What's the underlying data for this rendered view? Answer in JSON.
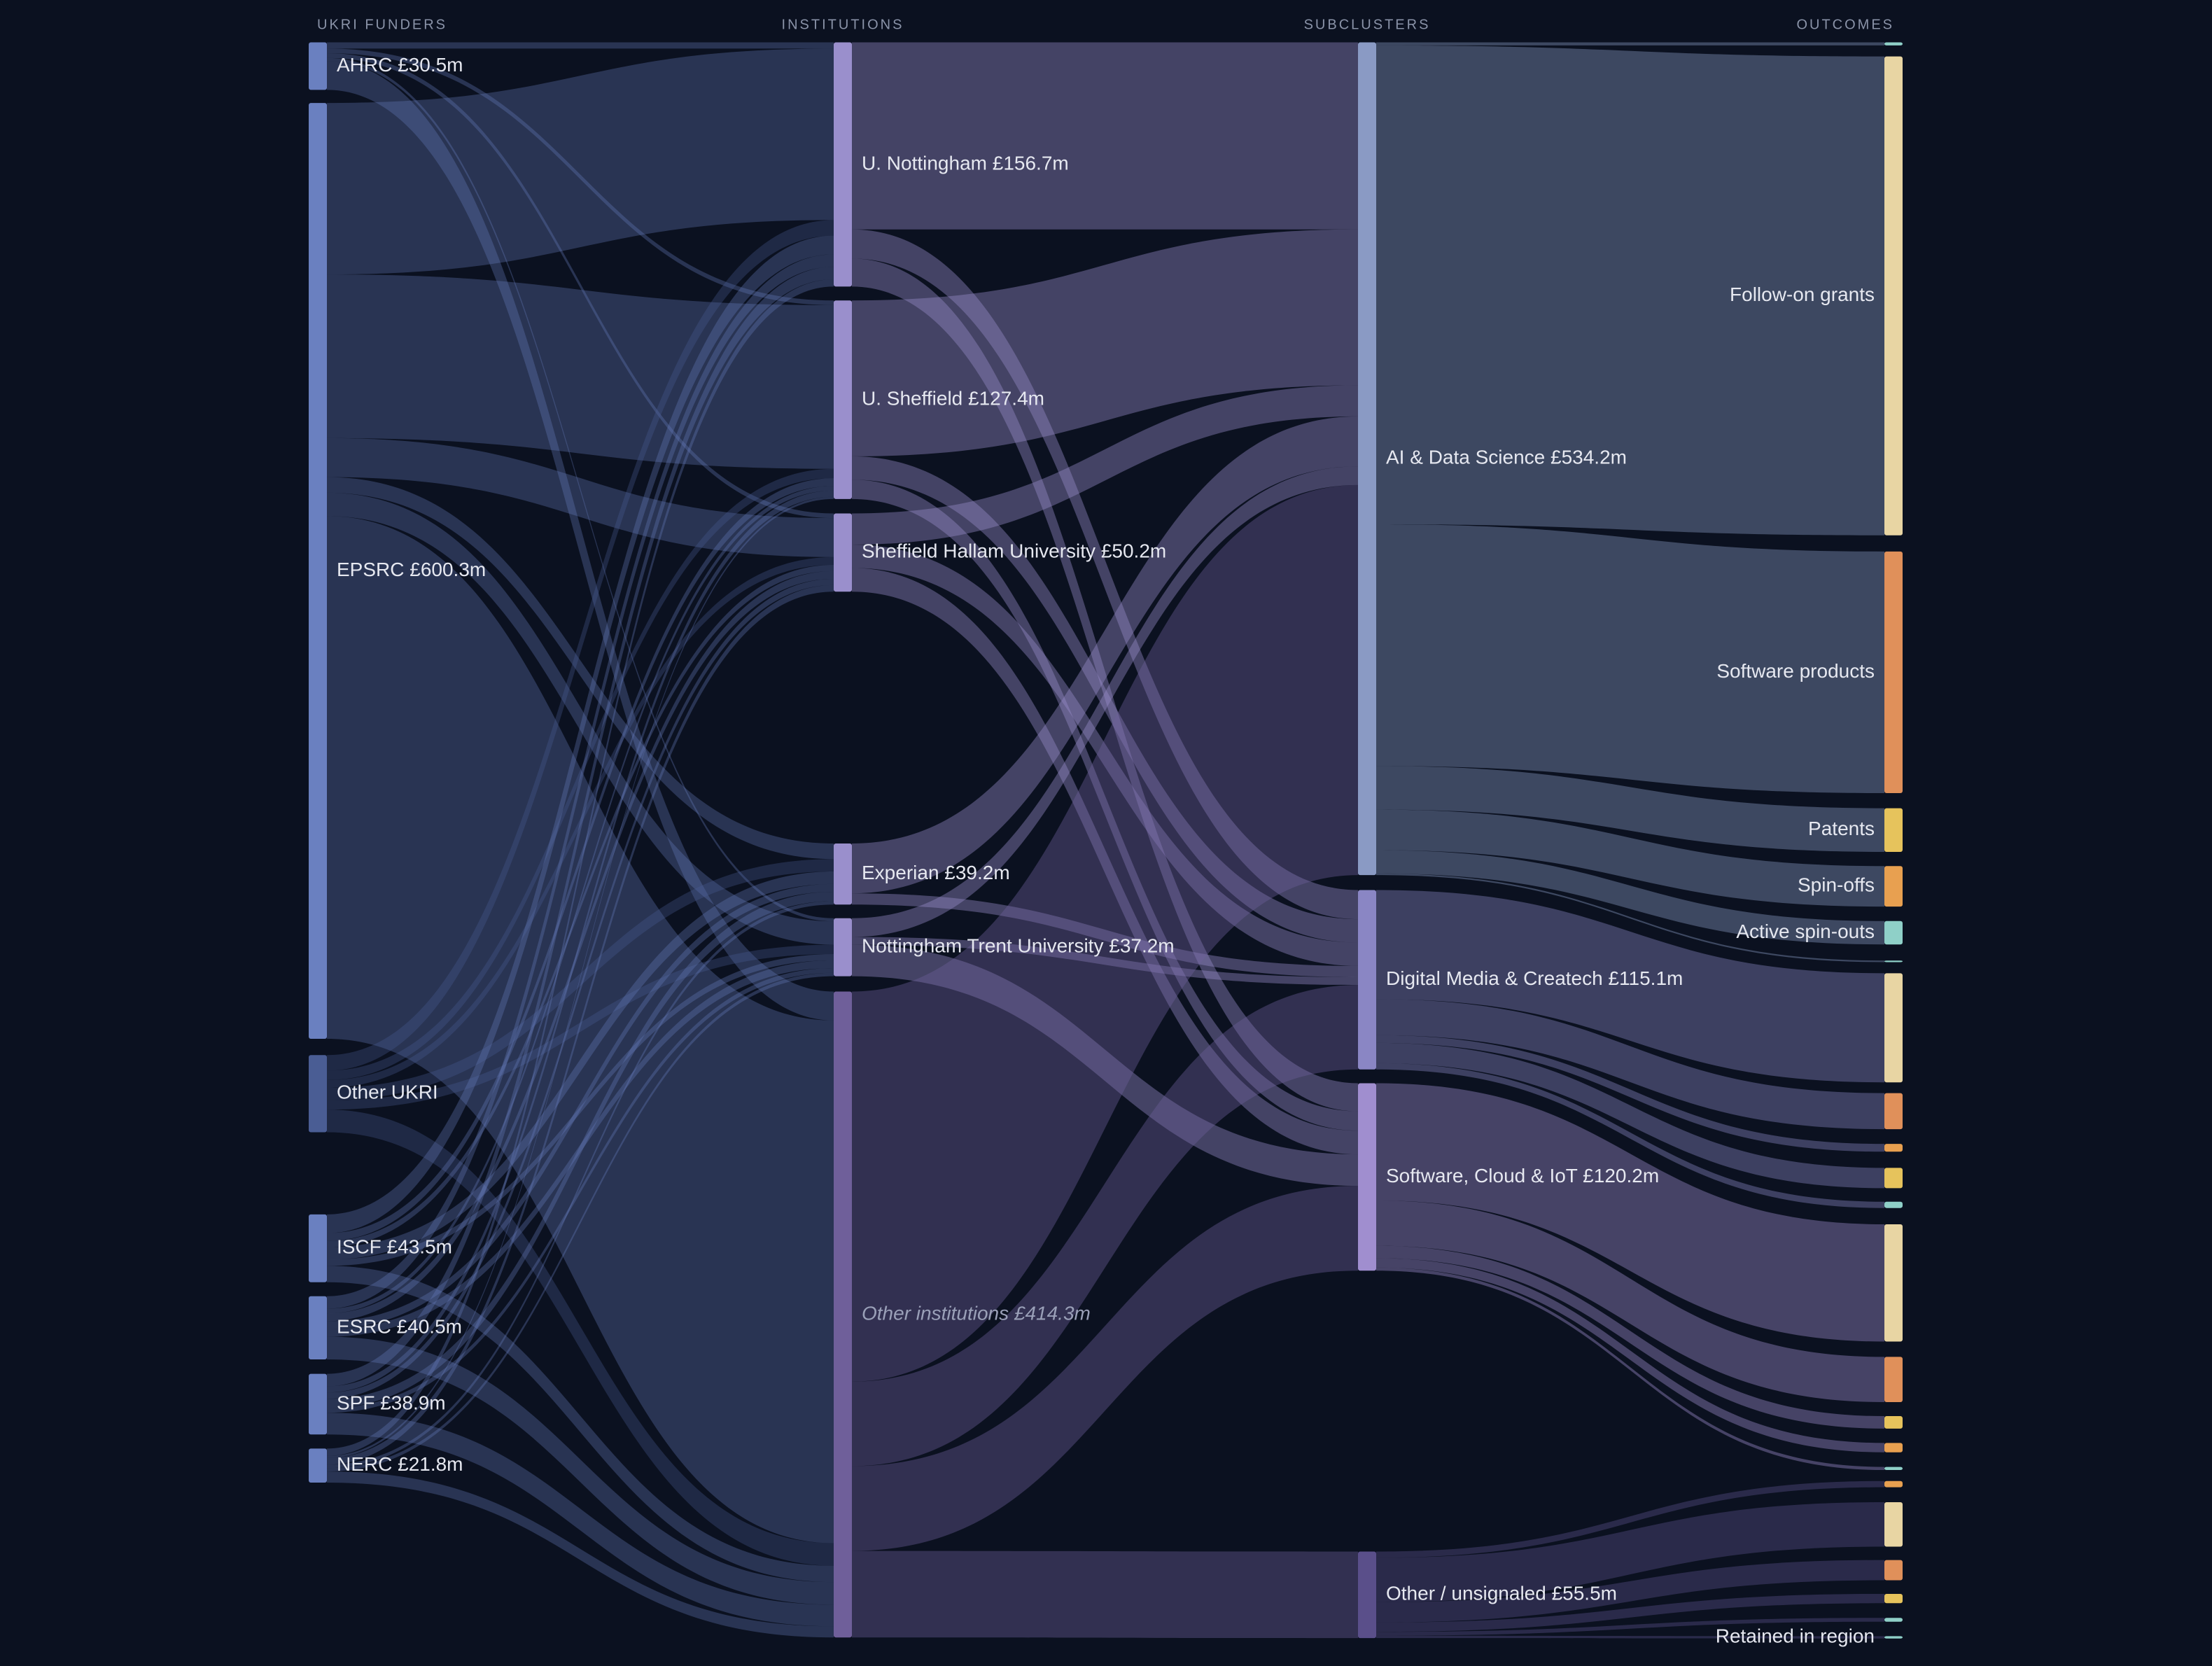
{
  "columns": [
    {
      "title": "UKRI FUNDERS",
      "nodes": [
        {
          "label": "AHRC £30.5m",
          "value": 30.5,
          "color": "#6a80c0"
        },
        {
          "label": "EPSRC £600.3m",
          "value": 600.3,
          "color": "#6a80c0"
        },
        {
          "label": "Other UKRI",
          "value": 49.5,
          "color": "#4a5d94"
        },
        {
          "label": "ISCF £43.5m",
          "value": 43.5,
          "color": "#6a80c0"
        },
        {
          "label": "ESRC £40.5m",
          "value": 40.5,
          "color": "#6a80c0"
        },
        {
          "label": "SPF £38.9m",
          "value": 38.9,
          "color": "#6a80c0"
        },
        {
          "label": "NERC £21.8m",
          "value": 21.8,
          "color": "#6a80c0"
        }
      ]
    },
    {
      "title": "INSTITUTIONS",
      "nodes": [
        {
          "label": "U. Nottingham £156.7m",
          "value": 156.7,
          "color": "#9a8fcc"
        },
        {
          "label": "U. Sheffield £127.4m",
          "value": 127.4,
          "color": "#9a8fcc"
        },
        {
          "label": "Sheffield Hallam University £50.2m",
          "value": 50.2,
          "color": "#9a8fcc"
        },
        {
          "label": "Experian £39.2m",
          "value": 39.2,
          "color": "#9a8fcc"
        },
        {
          "label": "Nottingham Trent University £37.2m",
          "value": 37.2,
          "color": "#9a8fcc"
        },
        {
          "label": "Other institutions £414.3m",
          "value": 414.3,
          "color": "#6f5f9a"
        }
      ]
    },
    {
      "title": "SUBCLUSTERS",
      "nodes": [
        {
          "label": "AI & Data Science £534.2m",
          "value": 534.2,
          "color": "#8a9ac4"
        },
        {
          "label": "Digital Media & Createch £115.1m",
          "value": 115.1,
          "color": "#8a86c4"
        },
        {
          "label": "Software, Cloud & IoT £120.2m",
          "value": 120.2,
          "color": "#a08ecf"
        },
        {
          "label": "Other / unsignaled £55.5m",
          "value": 55.5,
          "color": "#5a4f8a"
        }
      ]
    },
    {
      "title": "OUTCOMES",
      "nodes": [
        {
          "label": null,
          "value": 2,
          "color": "#8fd0c8"
        },
        {
          "label": "Follow-on grants",
          "value": 307.2,
          "color": "#e8d5a3"
        },
        {
          "label": "Software products",
          "value": 155,
          "color": "#e0905a"
        },
        {
          "label": "Patents",
          "value": 28,
          "color": "#e6c35c"
        },
        {
          "label": "Spin-offs",
          "value": 26,
          "color": "#e8a050"
        },
        {
          "label": "Active spin-outs",
          "value": 15,
          "color": "#8fd0c8"
        },
        {
          "label": null,
          "value": 1,
          "color": "#8fd0c8"
        },
        {
          "label": null,
          "value": 70,
          "color": "#e8d5a3"
        },
        {
          "label": null,
          "value": 23.1,
          "color": "#e0905a"
        },
        {
          "label": null,
          "value": 5,
          "color": "#e8a050"
        },
        {
          "label": null,
          "value": 13,
          "color": "#e6c35c"
        },
        {
          "label": null,
          "value": 4,
          "color": "#8fd0c8"
        },
        {
          "label": null,
          "value": 75.2,
          "color": "#e8d5a3"
        },
        {
          "label": null,
          "value": 29,
          "color": "#e0905a"
        },
        {
          "label": null,
          "value": 8,
          "color": "#e6c35c"
        },
        {
          "label": null,
          "value": 6,
          "color": "#e8a050"
        },
        {
          "label": null,
          "value": 2,
          "color": "#8fd0c8"
        },
        {
          "label": null,
          "value": 4,
          "color": "#e8a050"
        },
        {
          "label": null,
          "value": 28.5,
          "color": "#e8d5a3"
        },
        {
          "label": null,
          "value": 13,
          "color": "#e0905a"
        },
        {
          "label": null,
          "value": 6,
          "color": "#e6c35c"
        },
        {
          "label": null,
          "value": 2.5,
          "color": "#8fd0c8"
        },
        {
          "label": "Retained in region",
          "value": 1.5,
          "color": "#8fd0c8"
        }
      ]
    }
  ],
  "links": [
    {
      "source": [
        0,
        0
      ],
      "target": [
        1,
        0
      ],
      "value": 4
    },
    {
      "source": [
        0,
        0
      ],
      "target": [
        1,
        1
      ],
      "value": 3
    },
    {
      "source": [
        0,
        0
      ],
      "target": [
        1,
        2
      ],
      "value": 3
    },
    {
      "source": [
        0,
        0
      ],
      "target": [
        1,
        4
      ],
      "value": 2
    },
    {
      "source": [
        0,
        0
      ],
      "target": [
        1,
        5
      ],
      "value": 18.5
    },
    {
      "source": [
        0,
        1
      ],
      "target": [
        1,
        0
      ],
      "value": 110
    },
    {
      "source": [
        0,
        1
      ],
      "target": [
        1,
        1
      ],
      "value": 105
    },
    {
      "source": [
        0,
        1
      ],
      "target": [
        1,
        2
      ],
      "value": 25
    },
    {
      "source": [
        0,
        1
      ],
      "target": [
        1,
        3
      ],
      "value": 10
    },
    {
      "source": [
        0,
        1
      ],
      "target": [
        1,
        4
      ],
      "value": 15
    },
    {
      "source": [
        0,
        1
      ],
      "target": [
        1,
        5
      ],
      "value": 335.3
    },
    {
      "source": [
        0,
        2
      ],
      "target": [
        1,
        0
      ],
      "value": 10
    },
    {
      "source": [
        0,
        2
      ],
      "target": [
        1,
        1
      ],
      "value": 6
    },
    {
      "source": [
        0,
        2
      ],
      "target": [
        1,
        2
      ],
      "value": 5
    },
    {
      "source": [
        0,
        2
      ],
      "target": [
        1,
        3
      ],
      "value": 8
    },
    {
      "source": [
        0,
        2
      ],
      "target": [
        1,
        4
      ],
      "value": 6
    },
    {
      "source": [
        0,
        2
      ],
      "target": [
        1,
        5
      ],
      "value": 14.5
    },
    {
      "source": [
        0,
        3
      ],
      "target": [
        1,
        0
      ],
      "value": 12
    },
    {
      "source": [
        0,
        3
      ],
      "target": [
        1,
        1
      ],
      "value": 5
    },
    {
      "source": [
        0,
        3
      ],
      "target": [
        1,
        2
      ],
      "value": 4
    },
    {
      "source": [
        0,
        3
      ],
      "target": [
        1,
        3
      ],
      "value": 8
    },
    {
      "source": [
        0,
        3
      ],
      "target": [
        1,
        4
      ],
      "value": 4
    },
    {
      "source": [
        0,
        3
      ],
      "target": [
        1,
        5
      ],
      "value": 10.5
    },
    {
      "source": [
        0,
        4
      ],
      "target": [
        1,
        0
      ],
      "value": 8
    },
    {
      "source": [
        0,
        4
      ],
      "target": [
        1,
        1
      ],
      "value": 3
    },
    {
      "source": [
        0,
        4
      ],
      "target": [
        1,
        2
      ],
      "value": 5
    },
    {
      "source": [
        0,
        4
      ],
      "target": [
        1,
        3
      ],
      "value": 5
    },
    {
      "source": [
        0,
        4
      ],
      "target": [
        1,
        4
      ],
      "value": 5
    },
    {
      "source": [
        0,
        4
      ],
      "target": [
        1,
        5
      ],
      "value": 14.5
    },
    {
      "source": [
        0,
        5
      ],
      "target": [
        1,
        0
      ],
      "value": 8
    },
    {
      "source": [
        0,
        5
      ],
      "target": [
        1,
        1
      ],
      "value": 4
    },
    {
      "source": [
        0,
        5
      ],
      "target": [
        1,
        2
      ],
      "value": 4
    },
    {
      "source": [
        0,
        5
      ],
      "target": [
        1,
        3
      ],
      "value": 6
    },
    {
      "source": [
        0,
        5
      ],
      "target": [
        1,
        4
      ],
      "value": 3
    },
    {
      "source": [
        0,
        5
      ],
      "target": [
        1,
        5
      ],
      "value": 13.9
    },
    {
      "source": [
        0,
        6
      ],
      "target": [
        1,
        0
      ],
      "value": 4.7
    },
    {
      "source": [
        0,
        6
      ],
      "target": [
        1,
        1
      ],
      "value": 1.4
    },
    {
      "source": [
        0,
        6
      ],
      "target": [
        1,
        2
      ],
      "value": 4.2
    },
    {
      "source": [
        0,
        6
      ],
      "target": [
        1,
        3
      ],
      "value": 2.2
    },
    {
      "source": [
        0,
        6
      ],
      "target": [
        1,
        4
      ],
      "value": 2.2
    },
    {
      "source": [
        0,
        6
      ],
      "target": [
        1,
        5
      ],
      "value": 7.1
    },
    {
      "source": [
        1,
        0
      ],
      "target": [
        2,
        0
      ],
      "value": 120
    },
    {
      "source": [
        1,
        0
      ],
      "target": [
        2,
        1
      ],
      "value": 18.7
    },
    {
      "source": [
        1,
        0
      ],
      "target": [
        2,
        2
      ],
      "value": 18
    },
    {
      "source": [
        1,
        1
      ],
      "target": [
        2,
        0
      ],
      "value": 100
    },
    {
      "source": [
        1,
        1
      ],
      "target": [
        2,
        1
      ],
      "value": 15
    },
    {
      "source": [
        1,
        1
      ],
      "target": [
        2,
        2
      ],
      "value": 12.4
    },
    {
      "source": [
        1,
        2
      ],
      "target": [
        2,
        0
      ],
      "value": 20
    },
    {
      "source": [
        1,
        2
      ],
      "target": [
        2,
        1
      ],
      "value": 15
    },
    {
      "source": [
        1,
        2
      ],
      "target": [
        2,
        2
      ],
      "value": 15.2
    },
    {
      "source": [
        1,
        3
      ],
      "target": [
        2,
        0
      ],
      "value": 32
    },
    {
      "source": [
        1,
        3
      ],
      "target": [
        2,
        1
      ],
      "value": 7.2
    },
    {
      "source": [
        1,
        4
      ],
      "target": [
        2,
        0
      ],
      "value": 12
    },
    {
      "source": [
        1,
        4
      ],
      "target": [
        2,
        1
      ],
      "value": 5
    },
    {
      "source": [
        1,
        4
      ],
      "target": [
        2,
        2
      ],
      "value": 20.2
    },
    {
      "source": [
        1,
        5
      ],
      "target": [
        2,
        0
      ],
      "value": 250.2
    },
    {
      "source": [
        1,
        5
      ],
      "target": [
        2,
        1
      ],
      "value": 54.2
    },
    {
      "source": [
        1,
        5
      ],
      "target": [
        2,
        2
      ],
      "value": 54.4
    },
    {
      "source": [
        1,
        5
      ],
      "target": [
        2,
        3
      ],
      "value": 55.5
    },
    {
      "source": [
        2,
        0
      ],
      "target": [
        3,
        0
      ],
      "value": 2
    },
    {
      "source": [
        2,
        0
      ],
      "target": [
        3,
        1
      ],
      "value": 307.2
    },
    {
      "source": [
        2,
        0
      ],
      "target": [
        3,
        2
      ],
      "value": 155
    },
    {
      "source": [
        2,
        0
      ],
      "target": [
        3,
        3
      ],
      "value": 28
    },
    {
      "source": [
        2,
        0
      ],
      "target": [
        3,
        4
      ],
      "value": 26
    },
    {
      "source": [
        2,
        0
      ],
      "target": [
        3,
        5
      ],
      "value": 15
    },
    {
      "source": [
        2,
        0
      ],
      "target": [
        3,
        6
      ],
      "value": 1
    },
    {
      "source": [
        2,
        1
      ],
      "target": [
        3,
        7
      ],
      "value": 70
    },
    {
      "source": [
        2,
        1
      ],
      "target": [
        3,
        8
      ],
      "value": 23.1
    },
    {
      "source": [
        2,
        1
      ],
      "target": [
        3,
        9
      ],
      "value": 5
    },
    {
      "source": [
        2,
        1
      ],
      "target": [
        3,
        10
      ],
      "value": 13
    },
    {
      "source": [
        2,
        1
      ],
      "target": [
        3,
        11
      ],
      "value": 4
    },
    {
      "source": [
        2,
        2
      ],
      "target": [
        3,
        12
      ],
      "value": 75.2
    },
    {
      "source": [
        2,
        2
      ],
      "target": [
        3,
        13
      ],
      "value": 29
    },
    {
      "source": [
        2,
        2
      ],
      "target": [
        3,
        14
      ],
      "value": 8
    },
    {
      "source": [
        2,
        2
      ],
      "target": [
        3,
        15
      ],
      "value": 6
    },
    {
      "source": [
        2,
        2
      ],
      "target": [
        3,
        16
      ],
      "value": 2
    },
    {
      "source": [
        2,
        3
      ],
      "target": [
        3,
        17
      ],
      "value": 4
    },
    {
      "source": [
        2,
        3
      ],
      "target": [
        3,
        18
      ],
      "value": 28.5
    },
    {
      "source": [
        2,
        3
      ],
      "target": [
        3,
        19
      ],
      "value": 13
    },
    {
      "source": [
        2,
        3
      ],
      "target": [
        3,
        20
      ],
      "value": 6
    },
    {
      "source": [
        2,
        3
      ],
      "target": [
        3,
        21
      ],
      "value": 2.5
    },
    {
      "source": [
        2,
        3
      ],
      "target": [
        3,
        22
      ],
      "value": 1.5
    }
  ]
}
